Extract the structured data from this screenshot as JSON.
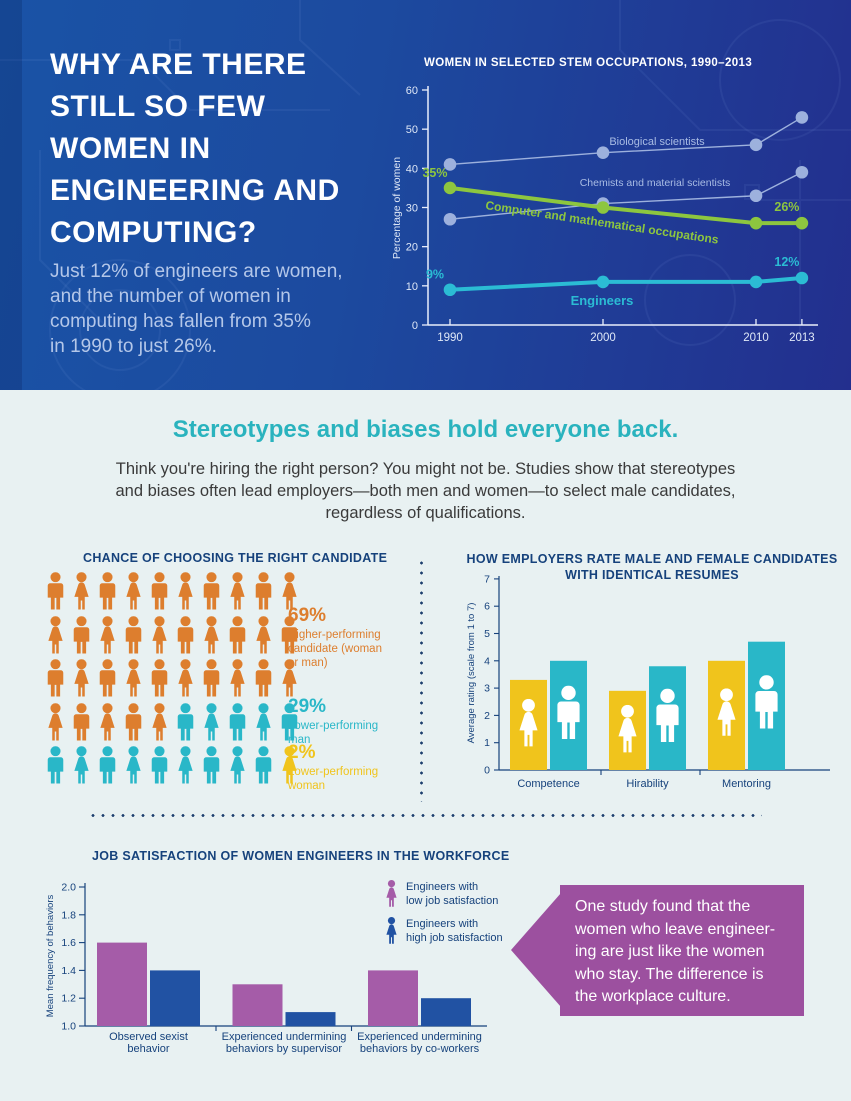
{
  "header": {
    "title_lines": [
      "WHY ARE THERE",
      "STILL SO FEW",
      "WOMEN IN",
      "ENGINEERING AND",
      "COMPUTING?"
    ],
    "subtitle_lines": [
      "Just 12% of engineers are women,",
      "and the number of women in",
      "computing has fallen from 35%",
      "in 1990 to just 26%."
    ]
  },
  "intro": {
    "heading": "Stereotypes and biases hold everyone back.",
    "body_lines": [
      "Think you're hiring the right person? You might not be. Studies show that stereotypes",
      "and biases often lead employers—both men and women—to select male candidates,",
      "regardless of qualifications."
    ]
  },
  "pictogram": {
    "title": "CHANCE OF CHOOSING THE RIGHT CANDIDATE",
    "rows": 5,
    "cols": 10,
    "groups": [
      {
        "count": 35,
        "color": "#dd7e2e",
        "pct": "69%",
        "label_lines": [
          "Higher-performing",
          "candidate (woman",
          "or man)"
        ]
      },
      {
        "count": 14,
        "color": "#29b7c8",
        "pct": "29%",
        "label_lines": [
          "Lower-performing",
          "man"
        ]
      },
      {
        "count": 1,
        "color": "#f0c41c",
        "pct": "2%",
        "label_lines": [
          "Lower-performing",
          "woman"
        ]
      }
    ]
  },
  "callout": {
    "lines": [
      "One study found that the",
      "women who leave engineer-",
      "ing are just like the women",
      "who stay. The difference is",
      "the workplace culture."
    ]
  },
  "colors": {
    "hero_bg_left": "#1a53a6",
    "hero_bg_right": "#232f8e",
    "section_bg": "#e8f1f2",
    "heading_teal": "#2ab3be",
    "navy": "#16427c",
    "subtitle_blue": "#b4c7e9",
    "axis_light": "#e9eefb",
    "tick_light": "#dfe8f7",
    "light_series": "#9db1dd",
    "green": "#8dc63f",
    "teal_line": "#2bbcd4",
    "orange": "#dd7e2e",
    "teal": "#29b7c8",
    "yellow": "#f0c41c",
    "purple_bar": "#a55ca8",
    "blue_bar": "#2152a3",
    "callout_purple": "#9c509f",
    "dot_navy": "#1d3f6f"
  },
  "chart_data": [
    {
      "id": "stem-occupations",
      "type": "line",
      "title": "WOMEN IN SELECTED STEM OCCUPATIONS, 1990–2013",
      "ylabel": "Percentage of women",
      "ylim": [
        0,
        60
      ],
      "yticks": [
        0,
        10,
        20,
        30,
        40,
        50,
        60
      ],
      "x": [
        1990,
        2000,
        2010,
        2013
      ],
      "xtick_labels": [
        "1990",
        "2000",
        "2010",
        "2013"
      ],
      "grid": false,
      "series": [
        {
          "name": "Biological scientists",
          "values": [
            41,
            44,
            46,
            53
          ],
          "color": "#9db1dd",
          "emphasis": false
        },
        {
          "name": "Chemists and material scientists",
          "values": [
            27,
            31,
            33,
            39
          ],
          "color": "#9db1dd",
          "emphasis": false
        },
        {
          "name": "Computer and mathematical occupations",
          "values": [
            35,
            30,
            26,
            26
          ],
          "color": "#8dc63f",
          "emphasis": true,
          "first_label": "35%",
          "last_label": "26%"
        },
        {
          "name": "Engineers",
          "values": [
            9,
            11,
            11,
            12
          ],
          "color": "#2bbcd4",
          "emphasis": true,
          "first_label": "9%",
          "last_label": "12%"
        }
      ]
    },
    {
      "id": "employer-rating",
      "type": "bar",
      "title_lines": [
        "HOW EMPLOYERS RATE MALE AND FEMALE CANDIDATES",
        "WITH IDENTICAL RESUMES"
      ],
      "ylabel": "Average rating (scale from 1 to 7)",
      "ylim": [
        0,
        7
      ],
      "yticks": [
        0,
        1,
        2,
        3,
        4,
        5,
        6,
        7
      ],
      "categories": [
        "Competence",
        "Hirability",
        "Mentoring"
      ],
      "series": [
        {
          "icon": "woman",
          "values": [
            3.3,
            2.9,
            4.0
          ],
          "color": "#f0c41c"
        },
        {
          "icon": "man",
          "values": [
            4.0,
            3.8,
            4.7
          ],
          "color": "#29b7c8"
        }
      ]
    },
    {
      "id": "job-satisfaction",
      "type": "bar",
      "title": "JOB SATISFACTION OF WOMEN ENGINEERS IN THE WORKFORCE",
      "ylabel": "Mean frequency of behaviors",
      "ylim": [
        1.0,
        2.0
      ],
      "yticks": [
        1.0,
        1.2,
        1.4,
        1.6,
        1.8,
        2.0
      ],
      "categories_lines": [
        [
          "Observed sexist",
          "behavior"
        ],
        [
          "Experienced undermining",
          "behaviors by supervisor"
        ],
        [
          "Experienced undermining",
          "behaviors by co-workers"
        ]
      ],
      "series": [
        {
          "name": "Engineers with low job satisfaction",
          "label_lines": [
            "Engineers with",
            "low job satisfaction"
          ],
          "values": [
            1.6,
            1.3,
            1.4
          ],
          "color": "#a55ca8",
          "icon": "woman"
        },
        {
          "name": "Engineers with high job satisfaction",
          "label_lines": [
            "Engineers with",
            "high job satisfaction"
          ],
          "values": [
            1.4,
            1.1,
            1.2
          ],
          "color": "#2152a3",
          "icon": "woman"
        }
      ]
    }
  ]
}
